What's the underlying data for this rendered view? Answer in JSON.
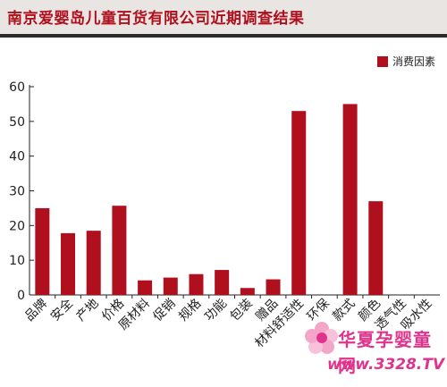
{
  "title": "南京爱婴岛儿童百货有限公司近期调查结果",
  "watermark": {
    "name": "华夏孕婴童网",
    "url": "www.3328.TV"
  },
  "colors": {
    "bar": "#b0101e",
    "title": "#b0101e",
    "axis": "#222222"
  },
  "chart_data": {
    "type": "bar",
    "title": "",
    "xlabel": "",
    "ylabel": "",
    "ylim": [
      0,
      60
    ],
    "yticks": [
      0,
      10,
      20,
      30,
      40,
      50,
      60
    ],
    "grid": false,
    "legend_position": "top-right",
    "categories": [
      "品牌",
      "安全",
      "产地",
      "价格",
      "原材料",
      "促销",
      "规格",
      "功能",
      "包装",
      "赠品",
      "材料舒适性",
      "环保",
      "款式",
      "颜色",
      "透气性",
      "吸水性"
    ],
    "series": [
      {
        "name": "消费因素",
        "values": [
          25,
          17.8,
          18.5,
          25.7,
          4.2,
          5,
          6,
          7.2,
          2,
          4.5,
          53,
          0,
          55,
          27,
          0,
          0
        ]
      }
    ]
  }
}
